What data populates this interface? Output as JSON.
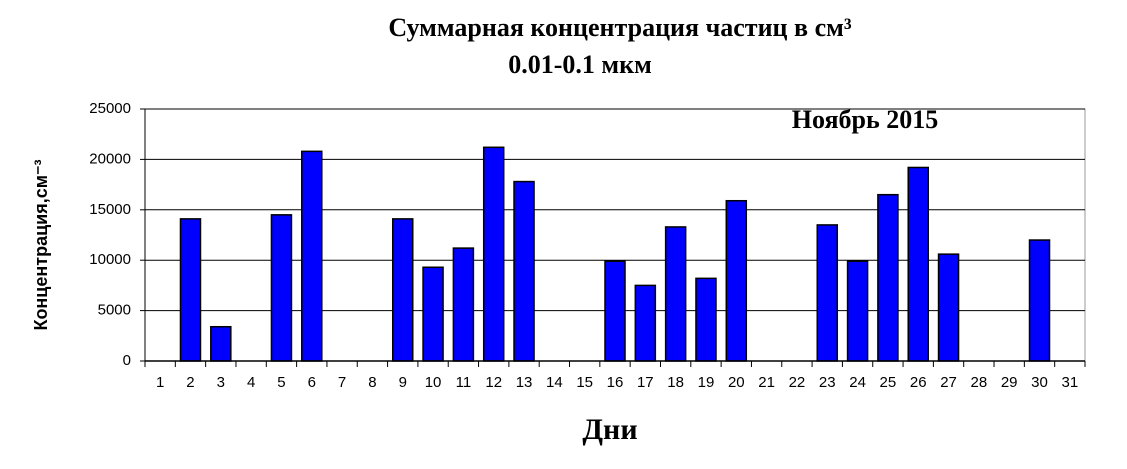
{
  "chart_data": {
    "type": "bar",
    "title": "Суммарная  концентрация  частиц  в см³",
    "subtitle": "0.01-0.1 мкм",
    "annotation": "Ноябрь 2015",
    "x_label": "Дни",
    "y_label": "Концентрация,см⁻³",
    "categories": [
      "1",
      "2",
      "3",
      "4",
      "5",
      "6",
      "7",
      "8",
      "9",
      "10",
      "11",
      "12",
      "13",
      "14",
      "15",
      "16",
      "17",
      "18",
      "19",
      "20",
      "21",
      "22",
      "23",
      "24",
      "25",
      "26",
      "27",
      "28",
      "29",
      "30",
      "31"
    ],
    "values": [
      0,
      14100,
      3400,
      0,
      14500,
      20800,
      0,
      0,
      14100,
      9300,
      11200,
      21200,
      17800,
      0,
      0,
      9900,
      7500,
      13300,
      8200,
      15900,
      0,
      0,
      13500,
      9900,
      16500,
      19200,
      10600,
      0,
      0,
      12000,
      0
    ],
    "color": "#0000ff",
    "ylim": [
      0,
      25000
    ],
    "yticks": [
      0,
      5000,
      10000,
      15000,
      20000,
      25000
    ],
    "grid": true
  }
}
